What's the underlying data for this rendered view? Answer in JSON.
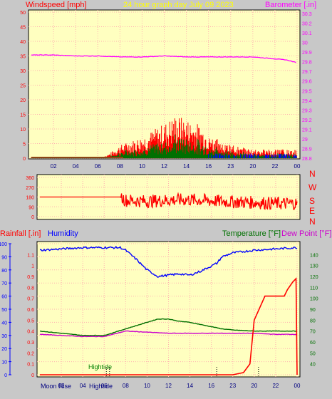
{
  "header": {
    "left": "Windspeed [mph]",
    "center": "24 hour graph day   July 09 2023",
    "right": "Barometer [.in]"
  },
  "colors": {
    "background": "#c8c8c8",
    "plot_bg": "#ffffc0",
    "grid": "#ffb0b0",
    "wind": "#ff0000",
    "gust_avg": "#007000",
    "wind_blue": "#0000ff",
    "barometer": "#ff00ff",
    "title": "#ffff00",
    "humidity": "#0000ff",
    "temperature": "#007000",
    "dew_point": "#cc00cc",
    "rain": "#ff0000",
    "winddir": "#ff0000",
    "tide": "#008000"
  },
  "x_ticks": [
    "02",
    "04",
    "06",
    "08",
    "10",
    "12",
    "14",
    "16",
    "23",
    "20",
    "22",
    "00"
  ],
  "compass": [
    "N",
    "W",
    "S",
    "E",
    "N"
  ],
  "bottom_header": {
    "rainfall": "Rainfall [.in]",
    "humidity": "Humidity",
    "temperature": "Temperature [°F]",
    "dew_point": "Dew Point [°F]"
  },
  "annotations": {
    "tide": "Hightide",
    "moon_rise": "Moon Rise",
    "hightide_bottom": "Hightide"
  },
  "chart_data": [
    {
      "type": "line",
      "title": "24 hour graph day   July 09 2023",
      "ylabel": "Windspeed [mph]",
      "ylabel_right": "Barometer [.in]",
      "ylim": [
        0,
        50
      ],
      "ylim_right": [
        28.8,
        30.3
      ],
      "y_ticks": [
        0,
        5,
        10,
        15,
        20,
        25,
        30,
        35,
        40,
        45,
        50
      ],
      "y_ticks_right": [
        28.8,
        28.9,
        29,
        29.1,
        29.2,
        29.3,
        29.4,
        29.5,
        29.6,
        29.7,
        29.8,
        29.9,
        30,
        30.1,
        30.2,
        30.3
      ],
      "x_ticks": [
        "02",
        "04",
        "06",
        "08",
        "10",
        "12",
        "14",
        "16",
        "23",
        "20",
        "22",
        "00"
      ],
      "series": [
        {
          "name": "Windspeed [mph]",
          "x": [
            0,
            2,
            4,
            6,
            7,
            8,
            10,
            12,
            13,
            14,
            15,
            16,
            18,
            20,
            22,
            24
          ],
          "y": [
            0,
            0,
            0,
            0,
            1,
            3,
            5,
            8,
            10,
            9,
            8,
            6,
            3,
            2,
            2,
            2
          ]
        },
        {
          "name": "Barometer [.in]",
          "x": [
            0,
            2,
            4,
            6,
            8,
            10,
            12,
            14,
            16,
            18,
            20,
            22,
            23,
            24
          ],
          "y": [
            29.87,
            29.87,
            29.86,
            29.86,
            29.85,
            29.85,
            29.86,
            29.85,
            29.85,
            29.85,
            29.85,
            29.83,
            29.82,
            29.79
          ]
        }
      ]
    },
    {
      "type": "line",
      "ylabel": "Wind direction",
      "ylim": [
        0,
        360
      ],
      "y_ticks": [
        0,
        90,
        180,
        270,
        360
      ],
      "series": [
        {
          "name": "Wind direction",
          "x": [
            0,
            2,
            4,
            6,
            7.5,
            8,
            10,
            12,
            14,
            16,
            18,
            20,
            22,
            24
          ],
          "y": [
            180,
            180,
            180,
            180,
            180,
            150,
            140,
            150,
            155,
            145,
            135,
            130,
            120,
            120
          ]
        }
      ]
    },
    {
      "type": "line",
      "ylim": [
        0,
        100
      ],
      "y_ticks": [
        0,
        10,
        20,
        30,
        40,
        50,
        60,
        70,
        80,
        90,
        100
      ],
      "ylim_rain": [
        0,
        1.2
      ],
      "y_ticks_rain": [
        0,
        0.1,
        0.2,
        0.3,
        0.4,
        0.5,
        0.6,
        0.7,
        0.8,
        0.9,
        1,
        1.1
      ],
      "ylim_temp": [
        30,
        150
      ],
      "y_ticks_temp": [
        40,
        50,
        60,
        70,
        80,
        90,
        100,
        110,
        120,
        130,
        140
      ],
      "series": [
        {
          "name": "Humidity",
          "x": [
            0,
            2,
            4,
            6,
            7.5,
            8,
            9,
            10,
            11,
            12,
            13,
            14,
            15,
            16,
            16.5,
            17,
            18,
            20,
            22,
            24
          ],
          "y": [
            95,
            96,
            97,
            97,
            97,
            95,
            88,
            80,
            75,
            76,
            77,
            76,
            79,
            83,
            85,
            90,
            93,
            95,
            96,
            97
          ]
        },
        {
          "name": "Temperature [°F]",
          "x": [
            0,
            2,
            4,
            6,
            8,
            10,
            11,
            12,
            13,
            14,
            15,
            16,
            17,
            18,
            20,
            22,
            24
          ],
          "y": [
            70,
            68,
            66,
            66,
            72,
            78,
            81,
            81,
            79,
            78,
            76,
            74,
            72,
            71,
            70,
            70,
            70
          ]
        },
        {
          "name": "Dew Point [°F]",
          "x": [
            0,
            2,
            4,
            6,
            8,
            10,
            12,
            14,
            16,
            18,
            20,
            22,
            24
          ],
          "y": [
            67,
            66,
            65,
            65,
            70,
            69,
            68,
            68,
            68,
            68,
            68,
            67,
            67
          ]
        },
        {
          "name": "Rainfall [.in]",
          "x": [
            0,
            5,
            10,
            15,
            18,
            19,
            19.6,
            20,
            21,
            22,
            22.8,
            23.1,
            23.6,
            23.9,
            24
          ],
          "y": [
            0,
            0,
            0,
            0,
            0,
            0.02,
            0.1,
            0.5,
            0.72,
            0.72,
            0.72,
            0.78,
            0.85,
            0.88,
            0
          ]
        }
      ]
    }
  ]
}
